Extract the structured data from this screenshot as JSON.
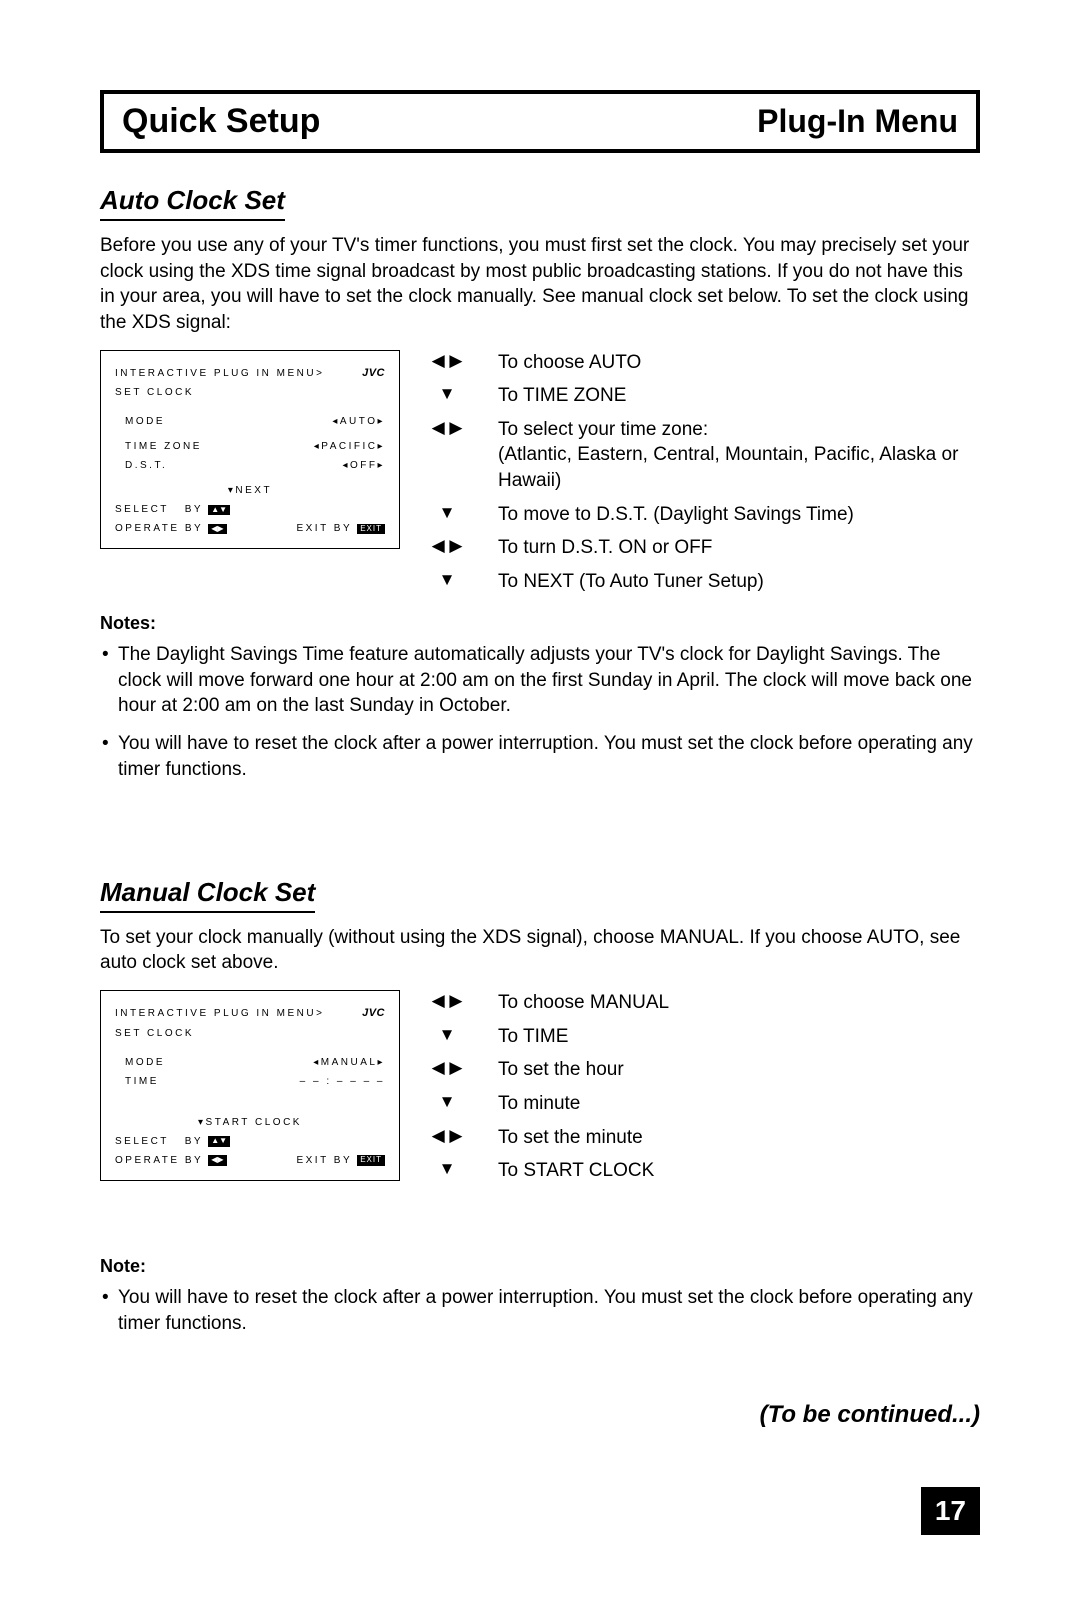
{
  "header": {
    "left": "Quick Setup",
    "right": "Plug-In Menu"
  },
  "section1": {
    "title": "Auto Clock Set",
    "intro": "Before you use any of your TV's timer functions, you must first set the clock. You may precisely set your clock using the XDS time signal broadcast by most public broadcasting stations. If you do not have this in your area, you will have to set the clock manually. See manual clock set below. To set the clock using the XDS signal:",
    "menu": {
      "line1": "INTERACTIVE PLUG IN MENU>",
      "brand": "JVC",
      "line2": "SET CLOCK",
      "mode_label": "MODE",
      "mode_value": "◂AUTO▸",
      "tz_label": "TIME ZONE",
      "tz_value": "◂PACIFIC▸",
      "dst_label": "D.S.T.",
      "dst_value": "◂OFF▸",
      "next": "▾NEXT",
      "select": "SELECT",
      "by": "BY",
      "operate": "OPERATE BY",
      "exit": "EXIT BY",
      "exit_badge": "EXIT"
    },
    "steps": [
      {
        "icon": "lr",
        "text": "To choose AUTO"
      },
      {
        "icon": "down",
        "text": "To TIME ZONE"
      },
      {
        "icon": "lr",
        "text": "To select your time zone:\n(Atlantic, Eastern, Central, Mountain, Pacific, Alaska or Hawaii)"
      },
      {
        "icon": "down",
        "text": "To move to D.S.T. (Daylight Savings Time)"
      },
      {
        "icon": "lr",
        "text": "To turn D.S.T. ON or OFF"
      },
      {
        "icon": "down",
        "text": "To NEXT (To Auto Tuner Setup)"
      }
    ],
    "notes_hdr": "Notes:",
    "notes": [
      "The Daylight Savings Time feature automatically adjusts your TV's clock for Daylight Savings. The clock will move forward one hour at 2:00 am on the first Sunday in April. The clock will move back one hour at 2:00 am on the last Sunday in October.",
      "You will have to reset the clock after a power interruption. You must set the clock before operating any timer functions."
    ]
  },
  "section2": {
    "title": "Manual Clock Set",
    "intro": "To set your clock manually (without using the XDS signal), choose MANUAL. If you choose AUTO, see auto clock set above.",
    "menu": {
      "line1": "INTERACTIVE PLUG IN MENU>",
      "brand": "JVC",
      "line2": "SET CLOCK",
      "mode_label": "MODE",
      "mode_value": "◂MANUAL▸",
      "time_label": "TIME",
      "time_value": "– – : – –   – –",
      "start": "▾START CLOCK",
      "select": "SELECT",
      "by": "BY",
      "operate": "OPERATE BY",
      "exit": "EXIT BY",
      "exit_badge": "EXIT"
    },
    "steps": [
      {
        "icon": "lr",
        "text": "To choose MANUAL"
      },
      {
        "icon": "down",
        "text": "To TIME"
      },
      {
        "icon": "lr",
        "text": "To set the hour"
      },
      {
        "icon": "down",
        "text": "To minute"
      },
      {
        "icon": "lr",
        "text": "To set the minute"
      },
      {
        "icon": "down",
        "text": "To START CLOCK"
      }
    ],
    "notes_hdr": "Note:",
    "notes": [
      "You will have to reset the clock after a power interruption. You must set the clock before operating any timer functions."
    ]
  },
  "continued": "(To be continued...)",
  "page_number": "17"
}
